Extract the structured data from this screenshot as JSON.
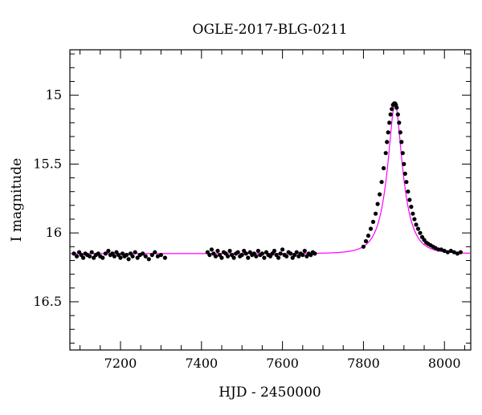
{
  "chart_data": {
    "type": "scatter",
    "title": "OGLE-2017-BLG-0211",
    "xlabel": "HJD - 2450000",
    "ylabel": "I magnitude",
    "xlim": [
      7075,
      8065
    ],
    "ylim": [
      16.85,
      14.67
    ],
    "y_inverted": true,
    "x_ticks": [
      7200,
      7400,
      7600,
      7800,
      8000
    ],
    "y_ticks": [
      15,
      15.5,
      16,
      16.5
    ],
    "x_tick_labels": [
      "7200",
      "7400",
      "7600",
      "7800",
      "8000"
    ],
    "y_tick_labels": [
      "15",
      "15.5",
      "16",
      "16.5"
    ],
    "grid": false,
    "colors": {
      "points": "#000000",
      "model": "#ff00ff",
      "axes": "#000000"
    },
    "model": {
      "name": "",
      "baseline": 16.15,
      "peak_x": 7878,
      "peak_mag": 15.06,
      "tE": 38,
      "u0": 0.36
    },
    "series": [
      {
        "name": "",
        "x": [
          7085,
          7092,
          7098,
          7103,
          7108,
          7113,
          7118,
          7124,
          7129,
          7134,
          7139,
          7145,
          7150,
          7156,
          7163,
          7170,
          7175,
          7180,
          7185,
          7190,
          7195,
          7200,
          7205,
          7210,
          7215,
          7220,
          7225,
          7230,
          7236,
          7242,
          7248,
          7255,
          7262,
          7270,
          7278,
          7285,
          7292,
          7300,
          7310,
          7415,
          7420,
          7425,
          7430,
          7435,
          7440,
          7445,
          7450,
          7455,
          7460,
          7465,
          7470,
          7475,
          7480,
          7485,
          7490,
          7495,
          7500,
          7505,
          7510,
          7515,
          7520,
          7525,
          7530,
          7535,
          7540,
          7545,
          7550,
          7555,
          7560,
          7565,
          7570,
          7575,
          7580,
          7585,
          7590,
          7595,
          7600,
          7605,
          7610,
          7615,
          7620,
          7625,
          7630,
          7635,
          7640,
          7645,
          7650,
          7655,
          7660,
          7665,
          7670,
          7675,
          7680,
          7800,
          7806,
          7812,
          7818,
          7824,
          7830,
          7835,
          7840,
          7845,
          7850,
          7855,
          7858,
          7861,
          7864,
          7867,
          7870,
          7873,
          7876,
          7878,
          7880,
          7882,
          7885,
          7888,
          7891,
          7894,
          7897,
          7900,
          7903,
          7906,
          7910,
          7914,
          7918,
          7922,
          7926,
          7930,
          7935,
          7940,
          7945,
          7950,
          7955,
          7960,
          7966,
          7972,
          7978,
          7985,
          7992,
          8000,
          8008,
          8016,
          8024,
          8032,
          8040
        ],
        "y": [
          16.15,
          16.17,
          16.14,
          16.16,
          16.18,
          16.15,
          16.16,
          16.17,
          16.14,
          16.18,
          16.16,
          16.15,
          16.17,
          16.18,
          16.15,
          16.13,
          16.16,
          16.15,
          16.17,
          16.14,
          16.16,
          16.18,
          16.15,
          16.17,
          16.16,
          16.19,
          16.15,
          16.17,
          16.14,
          16.18,
          16.16,
          16.15,
          16.17,
          16.19,
          16.16,
          16.14,
          16.17,
          16.16,
          16.18,
          16.14,
          16.16,
          16.12,
          16.15,
          16.17,
          16.13,
          16.16,
          16.18,
          16.14,
          16.15,
          16.17,
          16.13,
          16.16,
          16.18,
          16.15,
          16.14,
          16.17,
          16.16,
          16.13,
          16.15,
          16.18,
          16.14,
          16.16,
          16.15,
          16.17,
          16.13,
          16.16,
          16.15,
          16.18,
          16.14,
          16.16,
          16.17,
          16.15,
          16.13,
          16.16,
          16.18,
          16.15,
          16.12,
          16.16,
          16.17,
          16.14,
          16.15,
          16.18,
          16.16,
          16.14,
          16.17,
          16.15,
          16.16,
          16.13,
          16.17,
          16.15,
          16.16,
          16.14,
          16.15,
          16.1,
          16.06,
          16.02,
          15.97,
          15.92,
          15.86,
          15.79,
          15.72,
          15.63,
          15.53,
          15.42,
          15.34,
          15.27,
          15.2,
          15.14,
          15.1,
          15.07,
          15.06,
          15.06,
          15.07,
          15.09,
          15.14,
          15.2,
          15.27,
          15.34,
          15.42,
          15.5,
          15.57,
          15.63,
          15.7,
          15.76,
          15.81,
          15.86,
          15.9,
          15.94,
          15.97,
          16.0,
          16.03,
          16.05,
          16.07,
          16.08,
          16.09,
          16.1,
          16.11,
          16.12,
          16.12,
          16.13,
          16.14,
          16.13,
          16.14,
          16.15,
          16.14
        ]
      }
    ]
  }
}
